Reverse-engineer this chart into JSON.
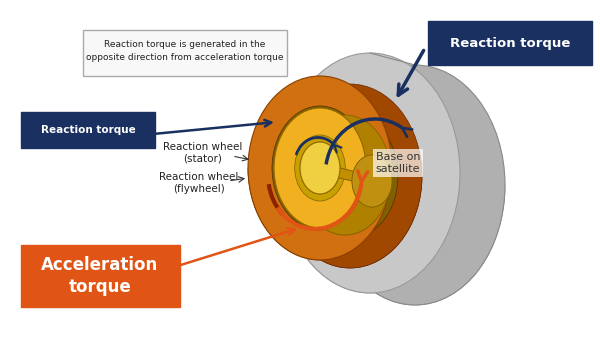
{
  "bg_color": "#ffffff",
  "dark_navy": "#1a3060",
  "orange_accent": "#e05515",
  "dark_blue_arrow": "#1a3060",
  "brown_arrow": "#8b2200",
  "orange_arrow": "#e05515",
  "callout_box_text": "Reaction torque is generated in the\nopposite direction from acceleration torque",
  "reaction_torque_label_top": "Reaction torque",
  "reaction_torque_label_left": "Reaction torque",
  "accel_torque_label": "Acceleration\ntorque",
  "stator_label": "Reaction wheel\n(stator)",
  "flywheel_label": "Reaction wheel\n(flywheel)",
  "base_label": "Base on\nsatellite",
  "grey_rim_color": "#b0b0b0",
  "grey_face_color": "#c8c8c8",
  "grey_side_color": "#a8a8a8",
  "fw_rim_color": "#a04800",
  "fw_face_color": "#d07010",
  "fw_ring_outer": "#e08820",
  "st_rim_color": "#b08000",
  "st_face_color": "#f0b020",
  "st_ring_color": "#d09010",
  "hub_rim_color": "#c09010",
  "hub_face_color": "#f0d040",
  "inner_face_color": "#c8a000",
  "inner_dark_color": "#806000"
}
